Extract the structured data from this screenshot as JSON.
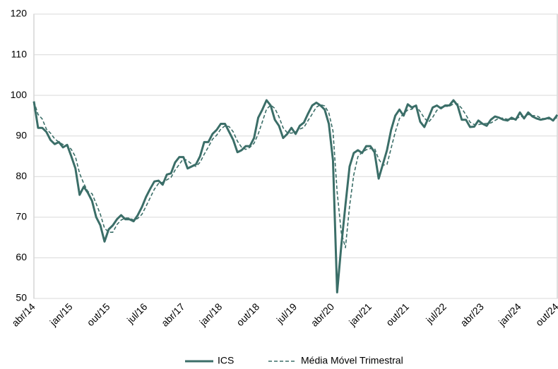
{
  "chart_data": {
    "type": "line",
    "categories": [
      "abr/14",
      null,
      null,
      null,
      null,
      null,
      null,
      null,
      null,
      "jan/15",
      null,
      null,
      null,
      null,
      null,
      null,
      null,
      null,
      "out/15",
      null,
      null,
      null,
      null,
      null,
      null,
      null,
      null,
      "jul/16",
      null,
      null,
      null,
      null,
      null,
      null,
      null,
      null,
      "abr/17",
      null,
      null,
      null,
      null,
      null,
      null,
      null,
      null,
      "jan/18",
      null,
      null,
      null,
      null,
      null,
      null,
      null,
      null,
      "out/18",
      null,
      null,
      null,
      null,
      null,
      null,
      null,
      null,
      "jul/19",
      null,
      null,
      null,
      null,
      null,
      null,
      null,
      null,
      "abr/20",
      null,
      null,
      null,
      null,
      null,
      null,
      null,
      null,
      "jan/21",
      null,
      null,
      null,
      null,
      null,
      null,
      null,
      null,
      "out/21",
      null,
      null,
      null,
      null,
      null,
      null,
      null,
      null,
      "jul/22",
      null,
      null,
      null,
      null,
      null,
      null,
      null,
      null,
      "abr/23",
      null,
      null,
      null,
      null,
      null,
      null,
      null,
      null,
      "jan/24",
      null,
      null,
      null,
      null,
      null,
      null,
      null,
      null,
      "out/24"
    ],
    "series": [
      {
        "name": "ICS",
        "color": "#3b6e68",
        "dashed": false,
        "values": [
          98.5,
          92,
          92,
          91,
          89,
          88,
          88.5,
          87.2,
          87.8,
          85,
          82,
          75.5,
          77.5,
          76,
          74,
          70,
          68,
          64,
          67,
          68,
          69.5,
          70.5,
          69.5,
          69.5,
          69,
          70.5,
          72.5,
          75,
          77,
          78.8,
          79,
          78,
          80.5,
          80.8,
          83.5,
          84.8,
          84.8,
          82,
          82.5,
          83,
          85,
          88.5,
          88.5,
          90.5,
          91.5,
          93,
          93,
          91,
          89,
          86,
          86.5,
          87.5,
          87.5,
          89.5,
          94.5,
          96.5,
          98.8,
          97.5,
          94,
          92.5,
          89.5,
          90.5,
          92,
          90.5,
          92.5,
          93.3,
          95.5,
          97.5,
          98.2,
          97.5,
          96.5,
          93,
          84,
          51.5,
          63,
          73,
          82.5,
          85.8,
          86.5,
          85.8,
          87.5,
          87.5,
          86,
          79.5,
          83,
          86.5,
          91.5,
          95,
          96.5,
          95,
          97.8,
          97,
          97.5,
          93.5,
          92.2,
          94.5,
          97,
          97.5,
          96.8,
          97.5,
          97.5,
          98.8,
          97.5,
          94,
          94,
          92.2,
          92.3,
          93.8,
          93,
          92.5,
          94,
          94.8,
          94.5,
          94,
          93.8,
          94.5,
          94,
          95.8,
          94.3,
          95.8,
          94.8,
          94.3,
          94,
          94.2,
          94.5,
          93.8,
          95.2
        ]
      },
      {
        "name": "Média Móvel Trimestral",
        "color": "#3b6e68",
        "dashed": true,
        "values": [
          98.5,
          95.3,
          94.2,
          91.7,
          90.7,
          89.3,
          88.5,
          87.9,
          87.8,
          86.7,
          84.9,
          80.8,
          78.3,
          76.3,
          75.8,
          73.3,
          70.7,
          67.3,
          66.3,
          66.3,
          68.2,
          69.3,
          69.8,
          69.8,
          69.3,
          69.7,
          70.7,
          72.7,
          74.8,
          76.9,
          78.3,
          78.6,
          79.2,
          79.8,
          81.6,
          83,
          84.4,
          83.9,
          83.1,
          82.5,
          83.5,
          85.5,
          87.3,
          89.2,
          90.2,
          91.7,
          92.5,
          92.3,
          91,
          88.7,
          87.2,
          86.7,
          87.2,
          88.2,
          90.5,
          93.5,
          96.6,
          97.6,
          96.8,
          94.7,
          92,
          90.8,
          90.7,
          91,
          91.7,
          92.1,
          93.8,
          95.4,
          97.1,
          97.7,
          97.4,
          95.7,
          91.2,
          76.2,
          66.2,
          62.5,
          72.8,
          80.4,
          84.9,
          86,
          86.6,
          86.9,
          87,
          84.3,
          82.8,
          83,
          87,
          91,
          94.3,
          95.5,
          96.4,
          96.6,
          97.4,
          96,
          94.4,
          93.4,
          94.6,
          96.3,
          97.1,
          97.3,
          97.3,
          97.9,
          97.9,
          96.8,
          95.2,
          93.4,
          92.8,
          92.8,
          93,
          93.1,
          93.2,
          93.8,
          94.4,
          94.4,
          94.1,
          94.1,
          94.1,
          94.8,
          94.7,
          95.3,
          95,
          95,
          94.4,
          94.2,
          94.2,
          94.2,
          94.5
        ]
      }
    ],
    "ylim": [
      50,
      120
    ],
    "yticks": [
      50,
      60,
      70,
      80,
      90,
      100,
      110,
      120
    ],
    "grid": true,
    "legend": "bottom"
  }
}
